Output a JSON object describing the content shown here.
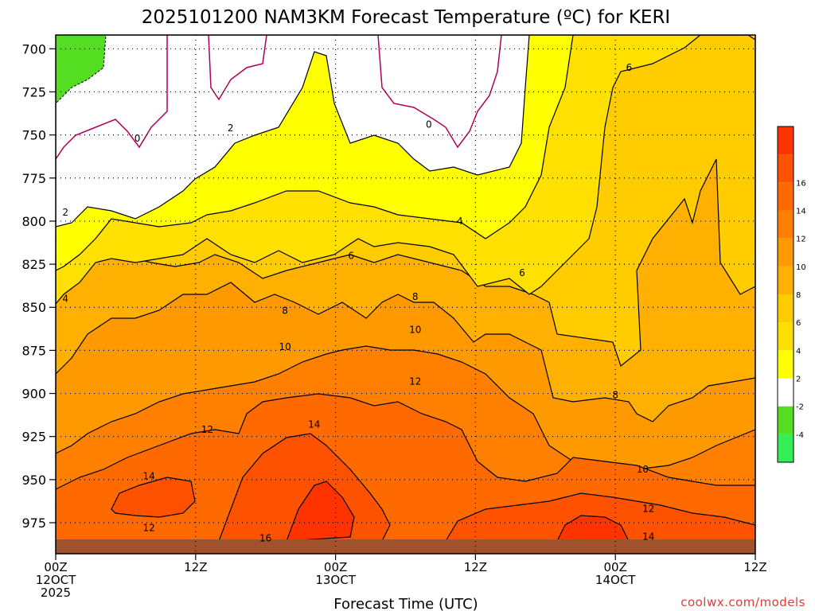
{
  "chart_data": {
    "type": "heatmap",
    "title": "2025101200 NAM3KM Forecast Temperature (ºC) for KERI",
    "xlabel": "Forecast Time (UTC)",
    "ylabel": "",
    "x_range_hours": [
      0,
      36
    ],
    "y_range_hpa": [
      692,
      993
    ],
    "y_ticks": [
      "700",
      "725",
      "750",
      "775",
      "800",
      "825",
      "850",
      "875",
      "900",
      "925",
      "950",
      "975"
    ],
    "y_tick_values": [
      700,
      725,
      750,
      775,
      800,
      825,
      850,
      875,
      900,
      925,
      950,
      975
    ],
    "x_ticks": [
      {
        "hour": 0,
        "line1": "00Z",
        "line2": "12OCT",
        "line3": "2025"
      },
      {
        "hour": 7.2,
        "line1": "12Z",
        "line2": "",
        "line3": ""
      },
      {
        "hour": 14.4,
        "line1": "00Z",
        "line2": "13OCT",
        "line3": ""
      },
      {
        "hour": 21.6,
        "line1": "12Z",
        "line2": "",
        "line3": ""
      },
      {
        "hour": 28.8,
        "line1": "00Z",
        "line2": "14OCT",
        "line3": ""
      },
      {
        "hour": 36,
        "line1": "12Z",
        "line2": "",
        "line3": ""
      }
    ],
    "grid": "dotted",
    "colorbar": {
      "placement": "right",
      "bins": [
        {
          "color": "#33ee55"
        },
        {
          "color": "#55dd22"
        },
        {
          "color": "#ffffff"
        },
        {
          "color": "#ffff00"
        },
        {
          "color": "#ffe000"
        },
        {
          "color": "#ffcc00"
        },
        {
          "color": "#ffb000"
        },
        {
          "color": "#ff9900"
        },
        {
          "color": "#ff8000"
        },
        {
          "color": "#ff6a00"
        },
        {
          "color": "#ff5200"
        },
        {
          "color": "#ff3300"
        }
      ],
      "labels": [
        "-4",
        "-2",
        "2",
        "4",
        "6",
        "8",
        "10",
        "12",
        "14",
        "16"
      ]
    },
    "contour_labels": [
      {
        "text": "0",
        "hour": 4.2,
        "p": 752
      },
      {
        "text": "0",
        "hour": 19.2,
        "p": 744
      },
      {
        "text": "2",
        "hour": 9,
        "p": 746
      },
      {
        "text": "2",
        "hour": 0.5,
        "p": 795
      },
      {
        "text": "4",
        "hour": 0.5,
        "p": 845
      },
      {
        "text": "4",
        "hour": 20.8,
        "p": 800
      },
      {
        "text": "6",
        "hour": 15.2,
        "p": 820
      },
      {
        "text": "6",
        "hour": 24,
        "p": 830
      },
      {
        "text": "6",
        "hour": 29.5,
        "p": 711
      },
      {
        "text": "8",
        "hour": 11.8,
        "p": 852
      },
      {
        "text": "8",
        "hour": 18.5,
        "p": 844
      },
      {
        "text": "8",
        "hour": 28.8,
        "p": 901
      },
      {
        "text": "10",
        "hour": 11.8,
        "p": 873
      },
      {
        "text": "10",
        "hour": 18.5,
        "p": 863
      },
      {
        "text": "10",
        "hour": 30.2,
        "p": 944
      },
      {
        "text": "12",
        "hour": 7.8,
        "p": 921
      },
      {
        "text": "12",
        "hour": 18.5,
        "p": 893
      },
      {
        "text": "12",
        "hour": 4.8,
        "p": 978
      },
      {
        "text": "12",
        "hour": 30.5,
        "p": 967
      },
      {
        "text": "14",
        "hour": 4.8,
        "p": 948
      },
      {
        "text": "14",
        "hour": 13.3,
        "p": 918
      },
      {
        "text": "14",
        "hour": 30.5,
        "p": 983
      },
      {
        "text": "16",
        "hour": 10.8,
        "p": 984
      }
    ]
  },
  "credit": "coolwx.com/models"
}
